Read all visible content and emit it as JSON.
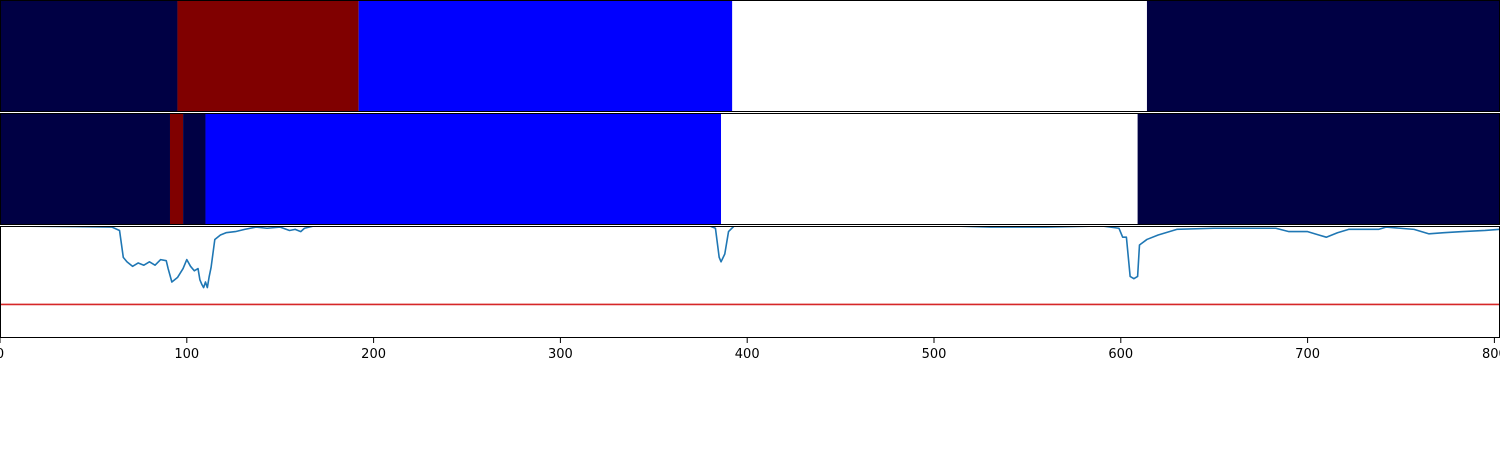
{
  "chart_data": [
    {
      "type": "heatmap",
      "panel": "ground-truth-segmentation",
      "xlim": [
        0,
        803
      ],
      "segments": [
        {
          "start": 0,
          "end": 95,
          "color": "#000044"
        },
        {
          "start": 95,
          "end": 192,
          "color": "#800000"
        },
        {
          "start": 192,
          "end": 392,
          "color": "#0000ff"
        },
        {
          "start": 392,
          "end": 614,
          "color": "#ffffff"
        },
        {
          "start": 614,
          "end": 803,
          "color": "#000044"
        }
      ]
    },
    {
      "type": "heatmap",
      "panel": "predicted-segmentation",
      "xlim": [
        0,
        803
      ],
      "segments": [
        {
          "start": 0,
          "end": 91,
          "color": "#000044"
        },
        {
          "start": 91,
          "end": 98,
          "color": "#800000"
        },
        {
          "start": 98,
          "end": 110,
          "color": "#000044"
        },
        {
          "start": 110,
          "end": 386,
          "color": "#0000ff"
        },
        {
          "start": 386,
          "end": 609,
          "color": "#ffffff"
        },
        {
          "start": 609,
          "end": 803,
          "color": "#000044"
        }
      ]
    },
    {
      "type": "line",
      "panel": "confidence",
      "xlim": [
        0,
        803
      ],
      "ylim": [
        0,
        1
      ],
      "threshold": 0.3,
      "series": [
        {
          "color": "#1f77b4",
          "points": [
            [
              0,
              1.0
            ],
            [
              40,
              0.995
            ],
            [
              60,
              0.99
            ],
            [
              64,
              0.96
            ],
            [
              66,
              0.72
            ],
            [
              68,
              0.68
            ],
            [
              71,
              0.64
            ],
            [
              74,
              0.67
            ],
            [
              77,
              0.65
            ],
            [
              80,
              0.68
            ],
            [
              83,
              0.65
            ],
            [
              86,
              0.7
            ],
            [
              89,
              0.69
            ],
            [
              90,
              0.62
            ],
            [
              92,
              0.5
            ],
            [
              95,
              0.54
            ],
            [
              98,
              0.62
            ],
            [
              100,
              0.7
            ],
            [
              102,
              0.64
            ],
            [
              104,
              0.6
            ],
            [
              106,
              0.62
            ],
            [
              107,
              0.52
            ],
            [
              108,
              0.48
            ],
            [
              109,
              0.45
            ],
            [
              110,
              0.5
            ],
            [
              111,
              0.45
            ],
            [
              112,
              0.55
            ],
            [
              113,
              0.63
            ],
            [
              115,
              0.88
            ],
            [
              118,
              0.92
            ],
            [
              121,
              0.94
            ],
            [
              126,
              0.95
            ],
            [
              131,
              0.97
            ],
            [
              137,
              0.99
            ],
            [
              143,
              0.98
            ],
            [
              150,
              0.99
            ],
            [
              155,
              0.96
            ],
            [
              158,
              0.97
            ],
            [
              161,
              0.95
            ],
            [
              163,
              0.98
            ],
            [
              168,
              1.0
            ],
            [
              300,
              1.0
            ],
            [
              380,
              1.0
            ],
            [
              383,
              0.98
            ],
            [
              385,
              0.72
            ],
            [
              386,
              0.68
            ],
            [
              388,
              0.75
            ],
            [
              390,
              0.95
            ],
            [
              393,
              1.0
            ],
            [
              510,
              1.0
            ],
            [
              530,
              0.99
            ],
            [
              560,
              0.99
            ],
            [
              590,
              1.0
            ],
            [
              599,
              0.98
            ],
            [
              601,
              0.9
            ],
            [
              603,
              0.9
            ],
            [
              605,
              0.55
            ],
            [
              607,
              0.53
            ],
            [
              609,
              0.55
            ],
            [
              610,
              0.83
            ],
            [
              614,
              0.88
            ],
            [
              620,
              0.92
            ],
            [
              630,
              0.97
            ],
            [
              650,
              0.98
            ],
            [
              670,
              0.98
            ],
            [
              683,
              0.98
            ],
            [
              690,
              0.95
            ],
            [
              700,
              0.95
            ],
            [
              706,
              0.92
            ],
            [
              710,
              0.9
            ],
            [
              716,
              0.94
            ],
            [
              722,
              0.97
            ],
            [
              738,
              0.97
            ],
            [
              742,
              0.99
            ],
            [
              757,
              0.97
            ],
            [
              765,
              0.93
            ],
            [
              773,
              0.94
            ],
            [
              783,
              0.95
            ],
            [
              795,
              0.96
            ],
            [
              803,
              0.97
            ]
          ]
        },
        {
          "color": "#d62728",
          "points": [
            [
              0,
              0.3
            ],
            [
              803,
              0.3
            ]
          ]
        }
      ],
      "xticks": [
        0,
        100,
        200,
        300,
        400,
        500,
        600,
        700,
        800
      ]
    }
  ]
}
